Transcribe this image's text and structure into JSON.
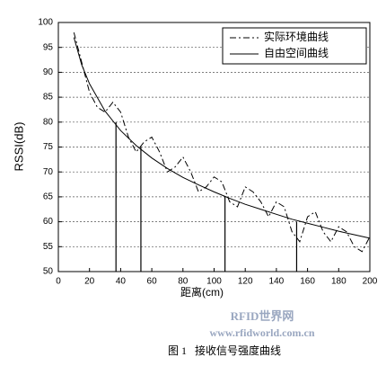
{
  "chart_data": {
    "type": "line",
    "xlabel": "距离(cm)",
    "ylabel": "RSSI(dB)",
    "xlim": [
      0,
      200
    ],
    "ylim": [
      50,
      100
    ],
    "xticks": [
      0,
      20,
      40,
      60,
      80,
      100,
      120,
      140,
      160,
      180,
      200
    ],
    "yticks": [
      50,
      55,
      60,
      65,
      70,
      75,
      80,
      85,
      90,
      95,
      100
    ],
    "grid": "y",
    "legend": "upper right",
    "series": [
      {
        "name": "实际环境曲线",
        "color": "#000000",
        "line_style": "dashdot",
        "x": [
          10,
          15,
          20,
          25,
          30,
          35,
          40,
          45,
          50,
          55,
          60,
          65,
          70,
          75,
          80,
          85,
          90,
          95,
          100,
          105,
          110,
          115,
          120,
          125,
          130,
          135,
          140,
          145,
          150,
          155,
          160,
          165,
          170,
          175,
          180,
          185,
          190,
          195,
          200
        ],
        "values": [
          98,
          92,
          86,
          83,
          82,
          84,
          82,
          77,
          74,
          76,
          77,
          74,
          70,
          71,
          73,
          70,
          66,
          67,
          69,
          68,
          64,
          63,
          67,
          66,
          64,
          61,
          64,
          63,
          58,
          56,
          61,
          62,
          58,
          56,
          59,
          58,
          55,
          54,
          57
        ]
      },
      {
        "name": "自由空间曲线",
        "color": "#000000",
        "line_style": "solid",
        "x": [
          10,
          15,
          20,
          30,
          40,
          50,
          60,
          70,
          80,
          90,
          100,
          110,
          120,
          130,
          140,
          150,
          160,
          170,
          180,
          190,
          200
        ],
        "values": [
          97,
          91.5,
          87.7,
          82.2,
          78.3,
          75.3,
          72.8,
          70.7,
          68.9,
          67.4,
          66,
          64.7,
          63.5,
          62.5,
          61.5,
          60.5,
          59.7,
          58.9,
          58.1,
          57.4,
          56.7
        ]
      }
    ],
    "drop_lines": {
      "color": "#000000",
      "x": [
        37,
        53,
        107,
        153
      ],
      "values": [
        80,
        75,
        65,
        60
      ]
    },
    "watermark": [
      "RFID世界网",
      "www.rfidworld.com.cn"
    ],
    "caption": "图 1   接收信号强度曲线"
  }
}
